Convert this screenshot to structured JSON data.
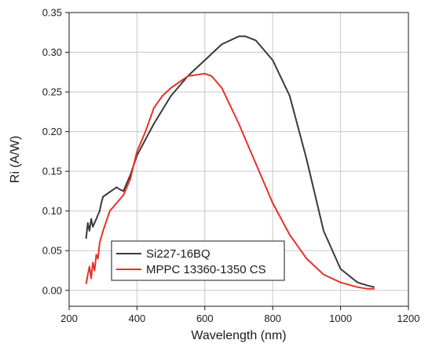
{
  "chart_data": {
    "type": "line",
    "title": "",
    "xlabel": "Wavelength (nm)",
    "ylabel": "Ri (A/W)",
    "xlim": [
      200,
      1200
    ],
    "ylim": [
      -0.02,
      0.35
    ],
    "xticks": [
      200,
      400,
      600,
      800,
      1000,
      1200
    ],
    "xtick_labels": [
      "200",
      "400",
      "600",
      "800",
      "1000",
      "1200"
    ],
    "yticks": [
      0.0,
      0.05,
      0.1,
      0.15,
      0.2,
      0.25,
      0.3,
      0.35
    ],
    "ytick_labels": [
      "0.00",
      "0.05",
      "0.10",
      "0.15",
      "0.20",
      "0.25",
      "0.30",
      "0.35"
    ],
    "grid": true,
    "legend_position": "bottom-left",
    "series": [
      {
        "name": "Si227-16BQ",
        "color": "#3a3a3a",
        "x": [
          250,
          255,
          260,
          265,
          270,
          275,
          280,
          285,
          290,
          295,
          300,
          310,
          320,
          330,
          340,
          350,
          360,
          370,
          380,
          400,
          450,
          500,
          550,
          600,
          650,
          700,
          720,
          750,
          800,
          850,
          900,
          950,
          1000,
          1050,
          1080,
          1100
        ],
        "y": [
          0.065,
          0.085,
          0.075,
          0.09,
          0.08,
          0.085,
          0.09,
          0.095,
          0.1,
          0.11,
          0.118,
          0.121,
          0.124,
          0.127,
          0.13,
          0.127,
          0.125,
          0.135,
          0.145,
          0.17,
          0.21,
          0.245,
          0.27,
          0.29,
          0.31,
          0.32,
          0.32,
          0.315,
          0.29,
          0.245,
          0.165,
          0.075,
          0.027,
          0.01,
          0.006,
          0.004
        ]
      },
      {
        "name": "MPPC 13360-1350 CS",
        "color": "#e8302a",
        "x": [
          250,
          255,
          260,
          265,
          270,
          275,
          280,
          285,
          290,
          300,
          320,
          340,
          360,
          380,
          400,
          425,
          450,
          475,
          500,
          550,
          600,
          620,
          650,
          700,
          750,
          800,
          850,
          900,
          950,
          1000,
          1050,
          1080,
          1100
        ],
        "y": [
          0.008,
          0.02,
          0.03,
          0.015,
          0.035,
          0.025,
          0.045,
          0.04,
          0.06,
          0.075,
          0.1,
          0.11,
          0.12,
          0.14,
          0.175,
          0.2,
          0.23,
          0.245,
          0.255,
          0.27,
          0.273,
          0.27,
          0.255,
          0.21,
          0.16,
          0.11,
          0.07,
          0.04,
          0.02,
          0.01,
          0.004,
          0.002,
          0.002
        ]
      }
    ]
  }
}
